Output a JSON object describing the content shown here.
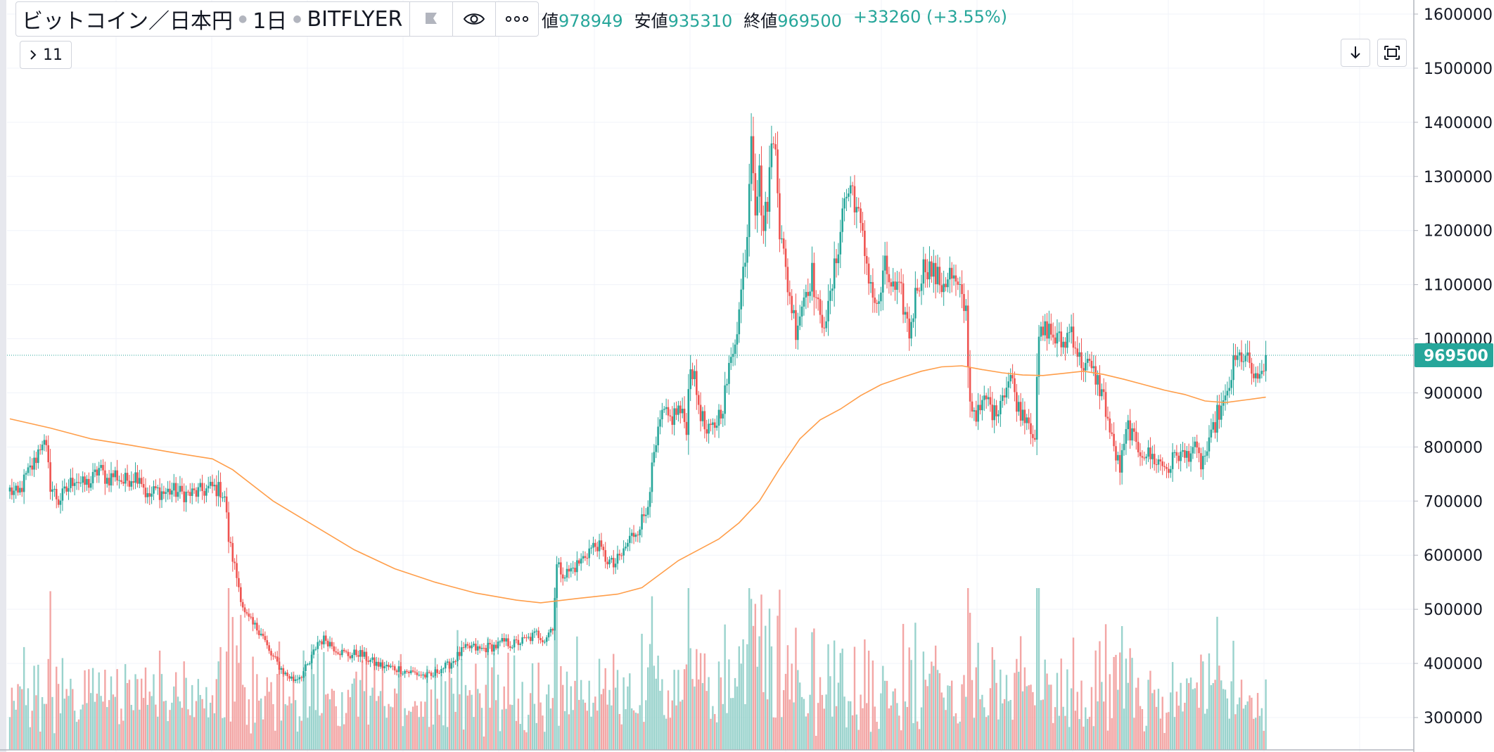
{
  "legend": {
    "symbol": "ビットコイン／日本円",
    "interval": "1日",
    "exchange": "BITFLYER",
    "ohlc_items": [
      {
        "label": "値",
        "value": "978949"
      },
      {
        "label": "安値",
        "value": "935310"
      },
      {
        "label": "終値",
        "value": "969500"
      }
    ],
    "change": "+33260 (+3.55%)",
    "indicators_count": "11"
  },
  "toolbar": {
    "flag_icon": "flag-icon",
    "eye_icon": "eye-icon",
    "more_icon": "more-icon",
    "download_icon": "download-icon",
    "fullscreen_icon": "fullscreen-icon"
  },
  "colors": {
    "up": "#26a69a",
    "down": "#ef5350",
    "volume_up": "#9ad3cd",
    "volume_down": "#f3a6a5",
    "ma": "#ff9e4a",
    "grid": "#f0f3fa",
    "price_line": "#26a69a"
  },
  "chart_data": {
    "type": "candlestick",
    "y_axis": {
      "ticks": [
        1600000,
        1500000,
        1400000,
        1300000,
        1200000,
        1100000,
        1000000,
        900000,
        800000,
        700000,
        600000,
        500000,
        400000,
        300000
      ],
      "tick_labels": [
        "1600000",
        "1500000",
        "1400000",
        "1300000",
        "1200000",
        "1100000",
        "1000000",
        "900000",
        "800000",
        "700000",
        "600000",
        "500000",
        "400000",
        "300000"
      ],
      "range": [
        260000,
        1625000
      ]
    },
    "last_price": 969500,
    "last_price_label": "969500",
    "price_path": [
      [
        0,
        720000
      ],
      [
        4,
        710000
      ],
      [
        8,
        745000
      ],
      [
        12,
        770000
      ],
      [
        16,
        815000
      ],
      [
        18,
        790000
      ],
      [
        20,
        730000
      ],
      [
        24,
        700000
      ],
      [
        28,
        720000
      ],
      [
        32,
        745000
      ],
      [
        36,
        730000
      ],
      [
        40,
        735000
      ],
      [
        44,
        760000
      ],
      [
        48,
        740000
      ],
      [
        52,
        750000
      ],
      [
        56,
        735000
      ],
      [
        60,
        745000
      ],
      [
        64,
        750000
      ],
      [
        68,
        705000
      ],
      [
        72,
        720000
      ],
      [
        76,
        715000
      ],
      [
        80,
        720000
      ],
      [
        84,
        715000
      ],
      [
        88,
        712000
      ],
      [
        92,
        715000
      ],
      [
        96,
        720000
      ],
      [
        100,
        725000
      ],
      [
        104,
        720000
      ],
      [
        106,
        710000
      ],
      [
        108,
        630000
      ],
      [
        112,
        560000
      ],
      [
        116,
        490000
      ],
      [
        120,
        470000
      ],
      [
        124,
        460000
      ],
      [
        128,
        420000
      ],
      [
        132,
        400000
      ],
      [
        136,
        380000
      ],
      [
        140,
        370000
      ],
      [
        144,
        380000
      ],
      [
        148,
        400000
      ],
      [
        152,
        440000
      ],
      [
        156,
        445000
      ],
      [
        160,
        430000
      ],
      [
        164,
        420000
      ],
      [
        168,
        415000
      ],
      [
        172,
        420000
      ],
      [
        176,
        410000
      ],
      [
        180,
        400000
      ],
      [
        184,
        395000
      ],
      [
        188,
        392000
      ],
      [
        192,
        390000
      ],
      [
        196,
        385000
      ],
      [
        200,
        382000
      ],
      [
        204,
        378000
      ],
      [
        208,
        375000
      ],
      [
        212,
        390000
      ],
      [
        216,
        395000
      ],
      [
        220,
        410000
      ],
      [
        224,
        425000
      ],
      [
        228,
        430000
      ],
      [
        232,
        425000
      ],
      [
        236,
        430000
      ],
      [
        240,
        432000
      ],
      [
        244,
        440000
      ],
      [
        248,
        435000
      ],
      [
        252,
        440000
      ],
      [
        256,
        445000
      ],
      [
        260,
        455000
      ],
      [
        264,
        445000
      ],
      [
        268,
        470000
      ],
      [
        270,
        580000
      ],
      [
        274,
        565000
      ],
      [
        278,
        575000
      ],
      [
        282,
        590000
      ],
      [
        286,
        610000
      ],
      [
        290,
        620000
      ],
      [
        294,
        595000
      ],
      [
        298,
        580000
      ],
      [
        302,
        600000
      ],
      [
        306,
        630000
      ],
      [
        310,
        650000
      ],
      [
        314,
        680000
      ],
      [
        318,
        780000
      ],
      [
        322,
        860000
      ],
      [
        326,
        850000
      ],
      [
        330,
        870000
      ],
      [
        334,
        840000
      ],
      [
        336,
        960000
      ],
      [
        340,
        880000
      ],
      [
        344,
        820000
      ],
      [
        348,
        840000
      ],
      [
        352,
        880000
      ],
      [
        356,
        960000
      ],
      [
        360,
        1050000
      ],
      [
        364,
        1200000
      ],
      [
        366,
        1400000
      ],
      [
        368,
        1250000
      ],
      [
        370,
        1300000
      ],
      [
        372,
        1200000
      ],
      [
        374,
        1260000
      ],
      [
        376,
        1350000
      ],
      [
        378,
        1380000
      ],
      [
        380,
        1200000
      ],
      [
        384,
        1100000
      ],
      [
        388,
        1020000
      ],
      [
        392,
        1080000
      ],
      [
        396,
        1120000
      ],
      [
        400,
        1030000
      ],
      [
        404,
        1050000
      ],
      [
        408,
        1150000
      ],
      [
        412,
        1260000
      ],
      [
        416,
        1280000
      ],
      [
        420,
        1200000
      ],
      [
        424,
        1120000
      ],
      [
        428,
        1050000
      ],
      [
        432,
        1130000
      ],
      [
        436,
        1090000
      ],
      [
        440,
        1080000
      ],
      [
        444,
        1010000
      ],
      [
        448,
        1100000
      ],
      [
        452,
        1140000
      ],
      [
        456,
        1120000
      ],
      [
        460,
        1100000
      ],
      [
        464,
        1120000
      ],
      [
        468,
        1090000
      ],
      [
        472,
        1050000
      ],
      [
        474,
        880000
      ],
      [
        478,
        860000
      ],
      [
        482,
        890000
      ],
      [
        486,
        860000
      ],
      [
        490,
        900000
      ],
      [
        494,
        930000
      ],
      [
        498,
        870000
      ],
      [
        502,
        860000
      ],
      [
        506,
        820000
      ],
      [
        508,
        1000000
      ],
      [
        512,
        1020000
      ],
      [
        516,
        1000000
      ],
      [
        520,
        990000
      ],
      [
        524,
        1020000
      ],
      [
        528,
        960000
      ],
      [
        532,
        950000
      ],
      [
        536,
        930000
      ],
      [
        540,
        890000
      ],
      [
        544,
        810000
      ],
      [
        548,
        760000
      ],
      [
        552,
        840000
      ],
      [
        556,
        800000
      ],
      [
        560,
        790000
      ],
      [
        564,
        780000
      ],
      [
        568,
        770000
      ],
      [
        572,
        760000
      ],
      [
        576,
        790000
      ],
      [
        580,
        780000
      ],
      [
        584,
        800000
      ],
      [
        588,
        770000
      ],
      [
        592,
        800000
      ],
      [
        596,
        860000
      ],
      [
        600,
        880000
      ],
      [
        604,
        950000
      ],
      [
        608,
        970000
      ],
      [
        612,
        950000
      ],
      [
        616,
        910000
      ],
      [
        620,
        969500
      ]
    ],
    "ma_line": [
      [
        0,
        852000
      ],
      [
        20,
        835000
      ],
      [
        40,
        815000
      ],
      [
        60,
        803000
      ],
      [
        80,
        790000
      ],
      [
        100,
        778000
      ],
      [
        110,
        758000
      ],
      [
        130,
        700000
      ],
      [
        150,
        655000
      ],
      [
        170,
        610000
      ],
      [
        190,
        575000
      ],
      [
        210,
        550000
      ],
      [
        230,
        530000
      ],
      [
        250,
        517000
      ],
      [
        262,
        512000
      ],
      [
        280,
        520000
      ],
      [
        300,
        528000
      ],
      [
        312,
        540000
      ],
      [
        330,
        590000
      ],
      [
        350,
        630000
      ],
      [
        360,
        660000
      ],
      [
        370,
        700000
      ],
      [
        380,
        760000
      ],
      [
        390,
        815000
      ],
      [
        400,
        850000
      ],
      [
        410,
        870000
      ],
      [
        420,
        895000
      ],
      [
        430,
        915000
      ],
      [
        440,
        928000
      ],
      [
        450,
        940000
      ],
      [
        460,
        948000
      ],
      [
        470,
        950000
      ],
      [
        480,
        943000
      ],
      [
        490,
        937000
      ],
      [
        500,
        933000
      ],
      [
        510,
        932000
      ],
      [
        520,
        936000
      ],
      [
        530,
        940000
      ],
      [
        540,
        934000
      ],
      [
        550,
        925000
      ],
      [
        560,
        915000
      ],
      [
        570,
        905000
      ],
      [
        580,
        897000
      ],
      [
        590,
        885000
      ],
      [
        600,
        882000
      ],
      [
        610,
        887000
      ],
      [
        620,
        892000
      ]
    ]
  }
}
